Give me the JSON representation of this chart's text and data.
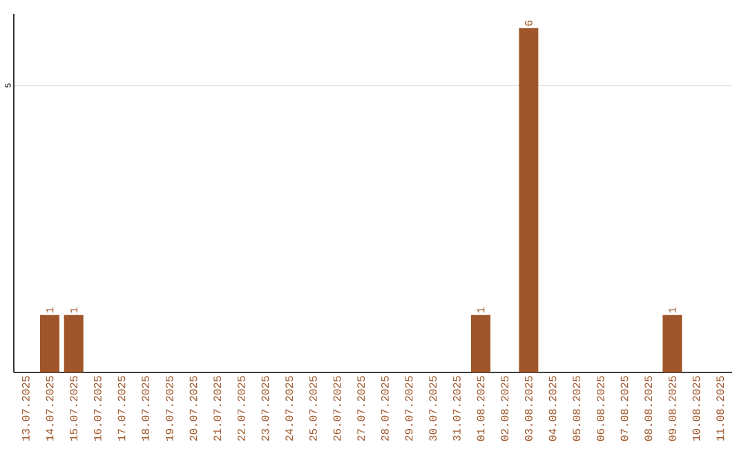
{
  "chart_data": {
    "type": "bar",
    "categories": [
      "13.07.2025",
      "14.07.2025",
      "15.07.2025",
      "16.07.2025",
      "17.07.2025",
      "18.07.2025",
      "19.07.2025",
      "20.07.2025",
      "21.07.2025",
      "22.07.2025",
      "23.07.2025",
      "24.07.2025",
      "25.07.2025",
      "26.07.2025",
      "27.07.2025",
      "28.07.2025",
      "29.07.2025",
      "30.07.2025",
      "31.07.2025",
      "01.08.2025",
      "02.08.2025",
      "03.08.2025",
      "04.08.2025",
      "05.08.2025",
      "06.08.2025",
      "07.08.2025",
      "08.08.2025",
      "09.08.2025",
      "10.08.2025",
      "11.08.2025"
    ],
    "values": [
      0,
      1,
      1,
      0,
      0,
      0,
      0,
      0,
      0,
      0,
      0,
      0,
      0,
      0,
      0,
      0,
      0,
      0,
      0,
      1,
      0,
      6,
      0,
      0,
      0,
      0,
      0,
      1,
      0,
      0
    ],
    "value_labels": [
      null,
      "1",
      "1",
      null,
      null,
      null,
      null,
      null,
      null,
      null,
      null,
      null,
      null,
      null,
      null,
      null,
      null,
      null,
      null,
      "1",
      null,
      "6",
      null,
      null,
      null,
      null,
      null,
      "1",
      null,
      null
    ],
    "color": "#a0562a",
    "ylim": [
      0,
      6.25
    ],
    "yticks": [
      5
    ],
    "grid": "y"
  }
}
